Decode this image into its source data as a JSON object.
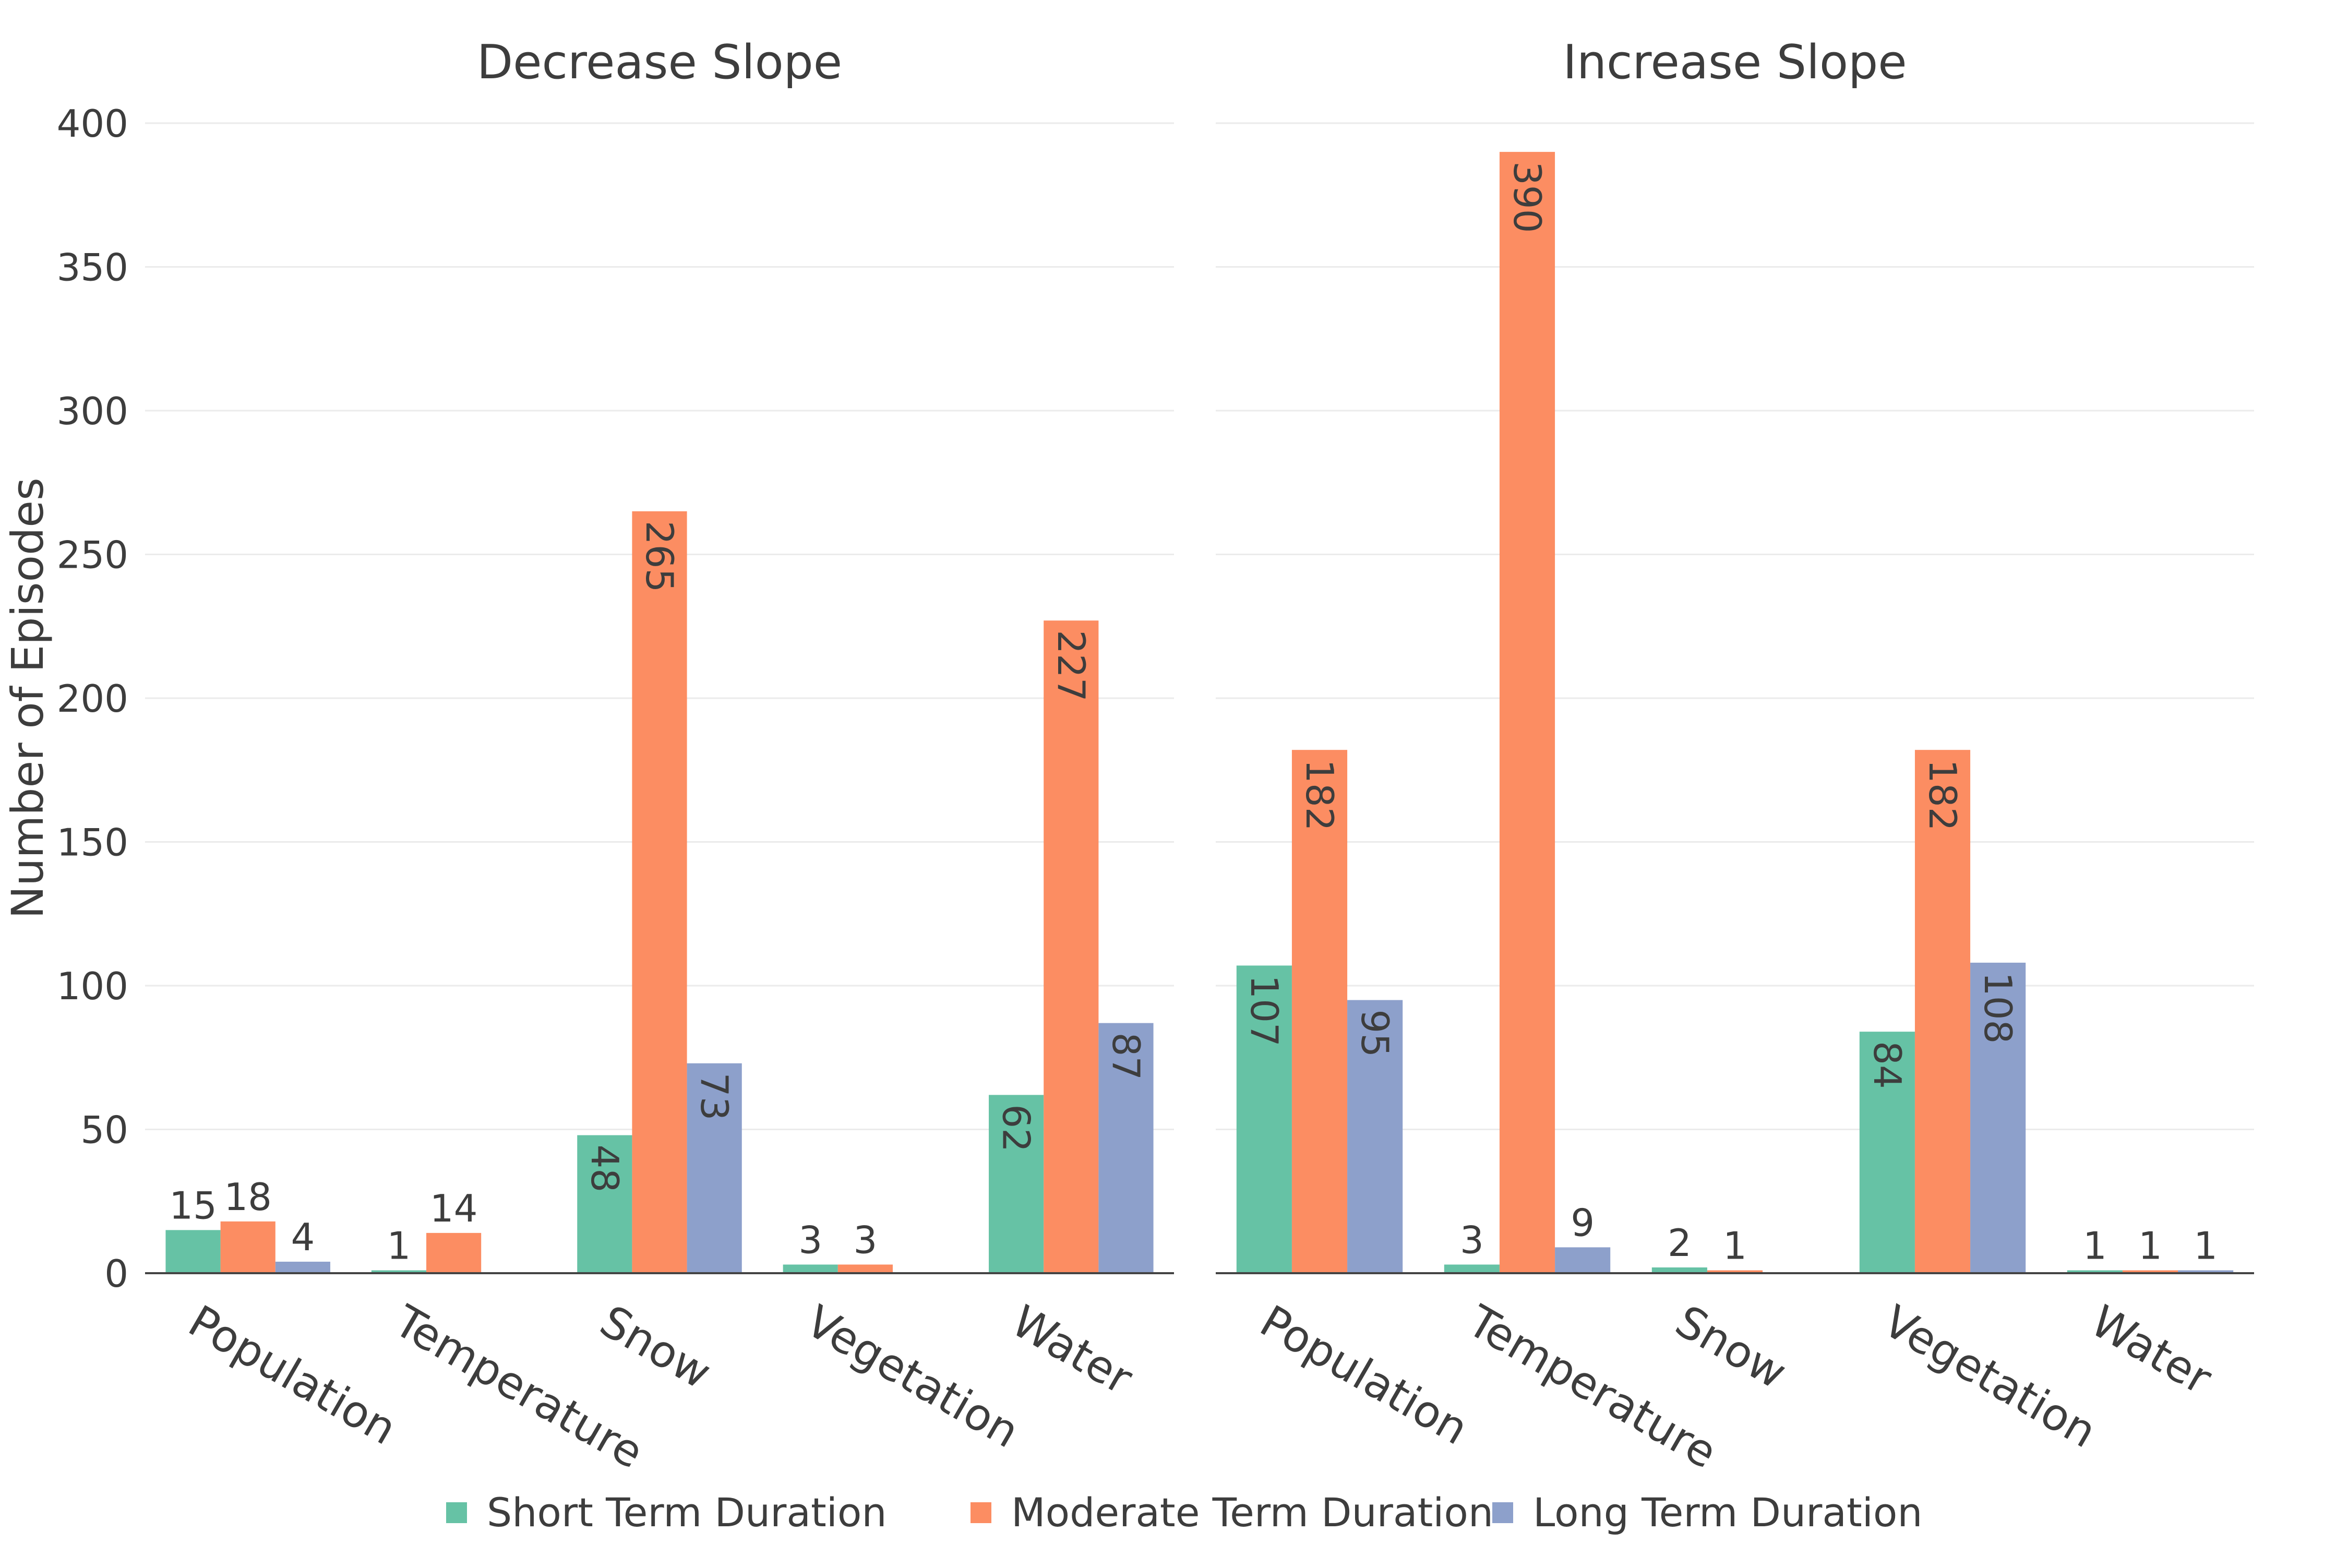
{
  "chart_data": {
    "type": "bar",
    "ylabel": "Number of Episodes",
    "ylim": [
      0,
      400
    ],
    "yticks": [
      0,
      50,
      100,
      150,
      200,
      250,
      300,
      350,
      400
    ],
    "grid": true,
    "legend": {
      "position": "bottom-center",
      "entries": [
        {
          "name": "Short Term Duration",
          "color": "#66c2a5"
        },
        {
          "name": "Moderate Term Duration",
          "color": "#fc8d62"
        },
        {
          "name": "Long Term Duration",
          "color": "#8da0cb"
        }
      ]
    },
    "panels": [
      {
        "title": "Decrease Slope",
        "categories": [
          "Population",
          "Temperature",
          "Snow",
          "Vegetation",
          "Water"
        ],
        "series": [
          {
            "name": "Short Term Duration",
            "color": "#66c2a5",
            "values": [
              15,
              1,
              48,
              3,
              62
            ]
          },
          {
            "name": "Moderate Term Duration",
            "color": "#fc8d62",
            "values": [
              18,
              14,
              265,
              3,
              227
            ]
          },
          {
            "name": "Long Term Duration",
            "color": "#8da0cb",
            "values": [
              4,
              null,
              73,
              null,
              87
            ]
          }
        ]
      },
      {
        "title": "Increase Slope",
        "categories": [
          "Population",
          "Temperature",
          "Snow",
          "Vegetation",
          "Water"
        ],
        "series": [
          {
            "name": "Short Term Duration",
            "color": "#66c2a5",
            "values": [
              107,
              3,
              2,
              84,
              1
            ]
          },
          {
            "name": "Moderate Term Duration",
            "color": "#fc8d62",
            "values": [
              182,
              390,
              1,
              182,
              1
            ]
          },
          {
            "name": "Long Term Duration",
            "color": "#8da0cb",
            "values": [
              95,
              9,
              null,
              108,
              1
            ]
          }
        ]
      }
    ]
  }
}
